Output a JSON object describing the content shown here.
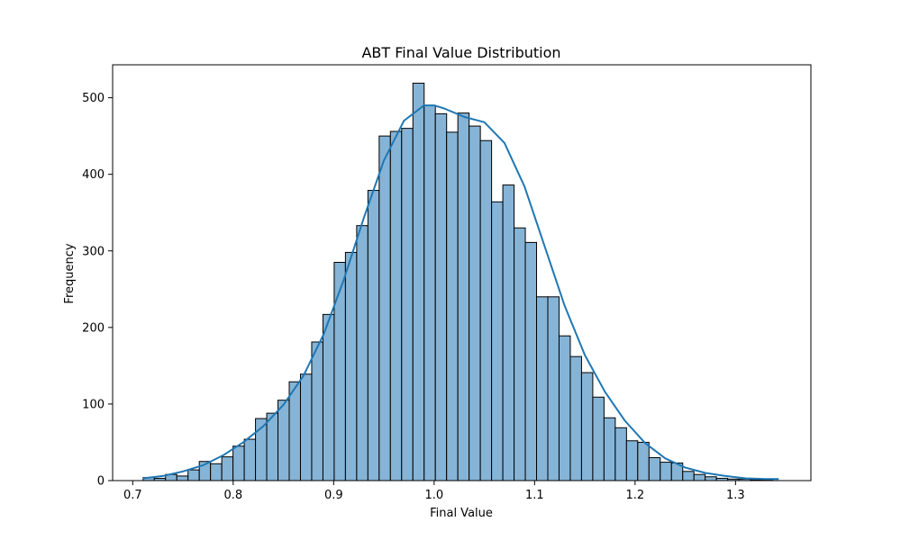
{
  "chart_data": {
    "type": "bar",
    "subtype": "histogram",
    "title": "ABT Final Value Distribution",
    "xlabel": "Final Value",
    "ylabel": "Frequency",
    "xlim": [
      0.68,
      1.375
    ],
    "ylim": [
      0,
      543
    ],
    "xticks": [
      0.7,
      0.8,
      0.9,
      1.0,
      1.1,
      1.2,
      1.3
    ],
    "xtick_labels": [
      "0.7",
      "0.8",
      "0.9",
      "1.0",
      "1.1",
      "1.2",
      "1.3"
    ],
    "yticks": [
      0,
      100,
      200,
      300,
      400,
      500
    ],
    "ytick_labels": [
      "0",
      "100",
      "200",
      "300",
      "400",
      "500"
    ],
    "bin_start": 0.7103,
    "bin_width": 0.01119,
    "values": [
      4,
      3,
      8,
      6,
      14,
      25,
      22,
      31,
      45,
      54,
      81,
      88,
      105,
      129,
      139,
      181,
      217,
      285,
      298,
      333,
      379,
      450,
      456,
      460,
      519,
      490,
      479,
      455,
      480,
      463,
      444,
      364,
      386,
      330,
      311,
      240,
      240,
      189,
      162,
      141,
      109,
      82,
      69,
      52,
      50,
      30,
      24,
      23,
      12,
      8,
      5,
      3,
      2,
      2,
      1,
      1
    ],
    "kde": {
      "x": [
        0.71,
        0.73,
        0.75,
        0.77,
        0.79,
        0.81,
        0.83,
        0.85,
        0.87,
        0.89,
        0.91,
        0.93,
        0.95,
        0.97,
        0.99,
        1.0,
        1.01,
        1.03,
        1.05,
        1.07,
        1.09,
        1.11,
        1.13,
        1.15,
        1.17,
        1.19,
        1.21,
        1.23,
        1.25,
        1.27,
        1.29,
        1.31,
        1.33,
        1.343
      ],
      "y": [
        3,
        6,
        12,
        20,
        33,
        50,
        71,
        99,
        137,
        191,
        262,
        343,
        418,
        470,
        490,
        490,
        486,
        475,
        468,
        441,
        384,
        306,
        228,
        164,
        116,
        78,
        49,
        29,
        17,
        10,
        6,
        3,
        2,
        2
      ]
    },
    "colors": {
      "bar_fill": "#86b4d6",
      "bar_edge": "#000000",
      "kde_line": "#1f77b4"
    }
  }
}
